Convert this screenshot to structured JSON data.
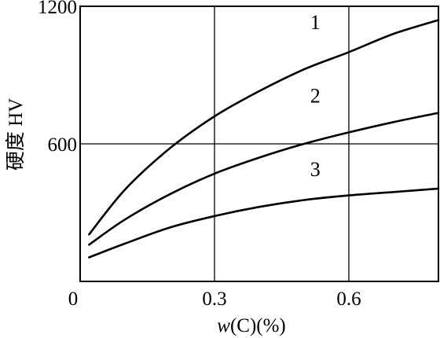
{
  "chart_data": {
    "type": "line",
    "title": "",
    "xlabel_prefix": "w",
    "xlabel_suffix": "(C)(%)",
    "ylabel": "硬度 HV",
    "xlim": [
      0,
      0.8
    ],
    "ylim": [
      0,
      1200
    ],
    "xticks": [
      {
        "value": 0,
        "label": "0"
      },
      {
        "value": 0.3,
        "label": "0.3"
      },
      {
        "value": 0.6,
        "label": "0.6"
      }
    ],
    "yticks": [
      {
        "value": 600,
        "label": "600"
      },
      {
        "value": 1200,
        "label": "1200"
      }
    ],
    "grid": true,
    "series": [
      {
        "name": "1",
        "x": [
          0.02,
          0.1,
          0.2,
          0.3,
          0.4,
          0.5,
          0.6,
          0.7,
          0.8
        ],
        "values": [
          205,
          400,
          580,
          720,
          830,
          925,
          1000,
          1080,
          1140
        ]
      },
      {
        "name": "2",
        "x": [
          0.02,
          0.1,
          0.2,
          0.3,
          0.4,
          0.5,
          0.6,
          0.7,
          0.8
        ],
        "values": [
          160,
          270,
          380,
          470,
          540,
          600,
          650,
          695,
          735
        ]
      },
      {
        "name": "3",
        "x": [
          0.02,
          0.1,
          0.2,
          0.3,
          0.4,
          0.5,
          0.6,
          0.7,
          0.8
        ],
        "values": [
          105,
          165,
          235,
          285,
          325,
          355,
          375,
          390,
          405
        ]
      }
    ],
    "series_label_positions_x": [
      0.525,
      0.525,
      0.525
    ],
    "series_label_values_y": [
      1100,
      780,
      460
    ]
  }
}
